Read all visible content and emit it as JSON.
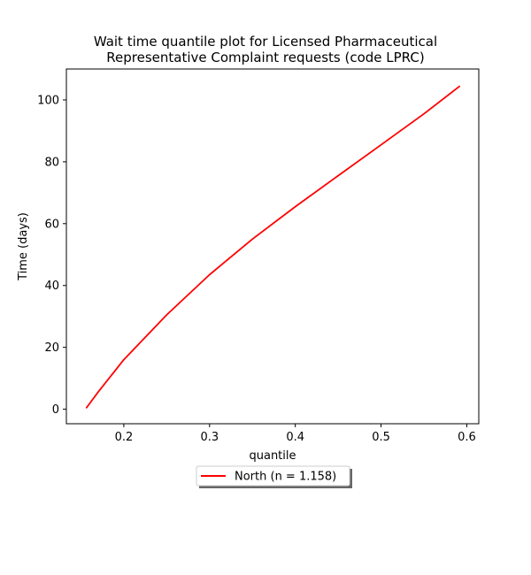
{
  "chart_data": {
    "type": "line",
    "title": "Wait time quantile plot for Licensed Pharmaceutical\nRepresentative Complaint  requests (code LPRC)",
    "xlabel": "quantile",
    "ylabel": "Time (days)",
    "xlim": [
      0.133,
      0.614
    ],
    "ylim": [
      -4.7,
      110
    ],
    "xticks": [
      0.2,
      0.3,
      0.4,
      0.5,
      0.6
    ],
    "xtick_labels": [
      "0.2",
      "0.3",
      "0.4",
      "0.5",
      "0.6"
    ],
    "yticks": [
      0,
      20,
      40,
      60,
      80,
      100
    ],
    "ytick_labels": [
      "0",
      "20",
      "40",
      "60",
      "80",
      "100"
    ],
    "grid": false,
    "legend_position": "below",
    "series": [
      {
        "name": "North (n = 1.158)",
        "color": "#ff0000",
        "x": [
          0.156,
          0.17,
          0.2,
          0.25,
          0.3,
          0.35,
          0.4,
          0.45,
          0.5,
          0.55,
          0.592
        ],
        "y": [
          0.3,
          5.5,
          16.0,
          30.5,
          43.5,
          55.0,
          65.5,
          75.5,
          85.5,
          95.5,
          104.5
        ]
      }
    ]
  }
}
